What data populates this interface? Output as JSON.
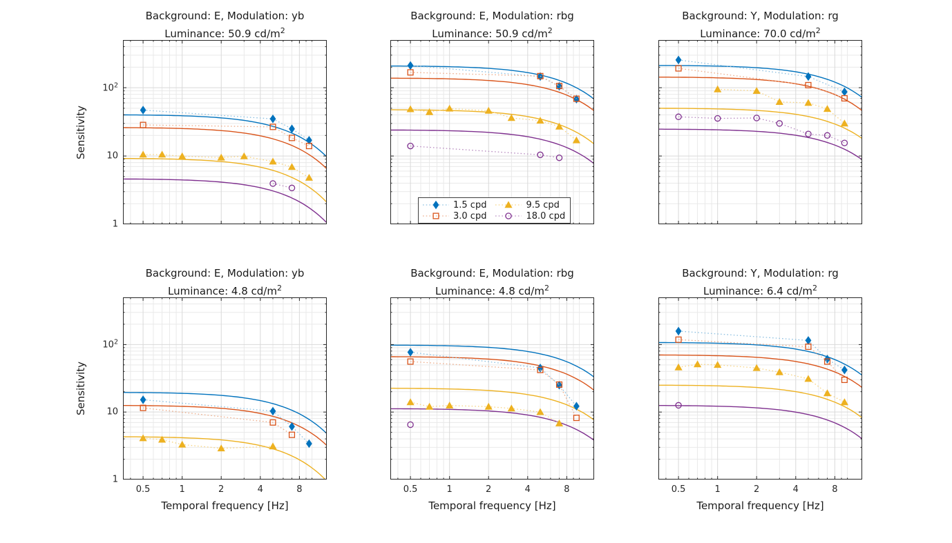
{
  "figure": {
    "background_color": "#ffffff",
    "text_color": "#1a1a1a",
    "axis_color": "#262626",
    "grid_minor_color": "#e9e9e9",
    "grid_major_color": "#d9d9d9"
  },
  "axis": {
    "xlabel": "Temporal frequency [Hz]",
    "ylabel": "Sensitivity",
    "xscale": "log",
    "yscale": "log",
    "xlim": [
      0.35,
      13
    ],
    "ylim": [
      1,
      500
    ],
    "xtick_values": [
      0.5,
      1,
      2,
      4,
      8
    ],
    "xtick_labels": [
      "0.5",
      "1",
      "2",
      "4",
      "8"
    ],
    "ytick_values": [
      1,
      10,
      100
    ],
    "ytick_labels": [
      {
        "text": "1"
      },
      {
        "text": "10"
      },
      {
        "text": "10",
        "sup": "2"
      }
    ],
    "grid_x_minor": [
      0.4,
      0.6,
      0.7,
      0.8,
      0.9,
      3,
      5,
      6,
      7,
      9,
      10
    ],
    "grid_y_minor": [
      2,
      3,
      4,
      5,
      6,
      7,
      8,
      9,
      20,
      30,
      40,
      50,
      60,
      70,
      80,
      90,
      200,
      300,
      400
    ]
  },
  "series_styles": {
    "1.5 cpd": {
      "color": "#0072BD",
      "light": "#8CC0E1",
      "marker": "diamond",
      "filled": true
    },
    "3.0 cpd": {
      "color": "#D95319",
      "light": "#EEAE8C",
      "marker": "square",
      "filled": false
    },
    "9.5 cpd": {
      "color": "#EDB120",
      "light": "#F7D484",
      "marker": "triangle",
      "filled": true
    },
    "18.0 cpd": {
      "color": "#7E2F8E",
      "light": "#B88CC0",
      "marker": "circle",
      "filled": false
    }
  },
  "legend": {
    "entries": [
      {
        "label": "1.5 cpd",
        "marker": "diamond"
      },
      {
        "label": "3.0 cpd",
        "marker": "square"
      },
      {
        "label": "9.5 cpd",
        "marker": "triangle"
      },
      {
        "label": "18.0 cpd",
        "marker": "circle"
      }
    ]
  },
  "chart_data": [
    {
      "type": "line",
      "title_line1": "Background: E, Modulation: yb",
      "title_line2": "Luminance: 50.9 cd/m",
      "title_sup": "2",
      "background": "E",
      "modulation": "yb",
      "luminance_cd_m2": 50.9,
      "series": [
        {
          "name": "1.5 cpd",
          "points": [
            [
              0.5,
              47
            ],
            [
              5,
              35
            ],
            [
              7,
              25
            ],
            [
              9.5,
              17
            ]
          ],
          "model_curve": {
            "y_at_xmin": 40,
            "y_at_xmax": 9.7
          }
        },
        {
          "name": "3.0 cpd",
          "points": [
            [
              0.5,
              28.5
            ],
            [
              5,
              26.7
            ],
            [
              7,
              18.4
            ],
            [
              9.5,
              14
            ]
          ],
          "model_curve": {
            "y_at_xmin": 26,
            "y_at_xmax": 6.5
          }
        },
        {
          "name": "9.5 cpd",
          "points": [
            [
              0.5,
              10.5
            ],
            [
              0.7,
              10.5
            ],
            [
              1,
              9.9
            ],
            [
              2,
              9.5
            ],
            [
              3,
              9.9
            ],
            [
              5,
              8.3
            ],
            [
              7,
              6.9
            ],
            [
              9.5,
              4.8
            ]
          ],
          "model_curve": {
            "y_at_xmin": 9.2,
            "y_at_xmax": 2.1
          }
        },
        {
          "name": "18.0 cpd",
          "points": [
            [
              5,
              3.95
            ],
            [
              7,
              3.4
            ]
          ],
          "model_curve": {
            "y_at_xmin": 4.6,
            "y_at_xmax": 1.05
          }
        }
      ]
    },
    {
      "type": "line",
      "title_line1": "Background: E, Modulation: rbg",
      "title_line2": "Luminance: 50.9 cd/m",
      "title_sup": "2",
      "background": "E",
      "modulation": "rbg",
      "luminance_cd_m2": 50.9,
      "series": [
        {
          "name": "1.5 cpd",
          "points": [
            [
              0.5,
              212
            ],
            [
              5,
              146
            ],
            [
              7,
              105
            ],
            [
              9.5,
              68
            ]
          ],
          "model_curve": {
            "y_at_xmin": 208,
            "y_at_xmax": 68
          }
        },
        {
          "name": "3.0 cpd",
          "points": [
            [
              0.5,
              168
            ],
            [
              5,
              148
            ],
            [
              7,
              106
            ],
            [
              9.5,
              69
            ]
          ],
          "model_curve": {
            "y_at_xmin": 138,
            "y_at_xmax": 46
          }
        },
        {
          "name": "9.5 cpd",
          "points": [
            [
              0.5,
              48.5
            ],
            [
              0.7,
              44
            ],
            [
              1,
              49.6
            ],
            [
              2,
              46
            ],
            [
              3,
              36
            ],
            [
              5,
              33
            ],
            [
              7,
              27
            ],
            [
              9.5,
              17
            ]
          ],
          "model_curve": {
            "y_at_xmin": 47.5,
            "y_at_xmax": 15
          }
        },
        {
          "name": "18.0 cpd",
          "points": [
            [
              0.5,
              14
            ],
            [
              5,
              10.4
            ],
            [
              7,
              9.4
            ]
          ],
          "model_curve": {
            "y_at_xmin": 24,
            "y_at_xmax": 7.7
          }
        }
      ]
    },
    {
      "type": "line",
      "title_line1": "Background: Y, Modulation: rg",
      "title_line2": "Luminance: 70.0 cd/m",
      "title_sup": "2",
      "background": "Y",
      "modulation": "rg",
      "luminance_cd_m2": 70.0,
      "series": [
        {
          "name": "1.5 cpd",
          "points": [
            [
              0.5,
              255
            ],
            [
              5,
              146
            ],
            [
              9.5,
              87
            ]
          ],
          "model_curve": {
            "y_at_xmin": 212,
            "y_at_xmax": 72
          }
        },
        {
          "name": "3.0 cpd",
          "points": [
            [
              0.5,
              192
            ],
            [
              5,
              109
            ],
            [
              9.5,
              70
            ]
          ],
          "model_curve": {
            "y_at_xmin": 143,
            "y_at_xmax": 46
          }
        },
        {
          "name": "9.5 cpd",
          "points": [
            [
              1,
              95
            ],
            [
              2,
              90
            ],
            [
              3,
              62
            ],
            [
              5,
              60
            ],
            [
              7,
              49
            ],
            [
              9.5,
              30
            ]
          ],
          "model_curve": {
            "y_at_xmin": 50,
            "y_at_xmax": 18
          }
        },
        {
          "name": "18.0 cpd",
          "points": [
            [
              0.5,
              37.5
            ],
            [
              1,
              35.5
            ],
            [
              2,
              36
            ],
            [
              3,
              30
            ],
            [
              5,
              21
            ],
            [
              7,
              20
            ],
            [
              9.5,
              15.5
            ]
          ],
          "model_curve": {
            "y_at_xmin": 24.7,
            "y_at_xmax": 8.8
          }
        }
      ]
    },
    {
      "type": "line",
      "title_line1": "Background: E, Modulation: yb",
      "title_line2": "Luminance: 4.8 cd/m",
      "title_sup": "2",
      "background": "E",
      "modulation": "yb",
      "luminance_cd_m2": 4.8,
      "series": [
        {
          "name": "1.5 cpd",
          "points": [
            [
              0.5,
              15.2
            ],
            [
              5,
              10.3
            ],
            [
              7,
              6.1
            ],
            [
              9.5,
              3.4
            ]
          ],
          "model_curve": {
            "y_at_xmin": 19.5,
            "y_at_xmax": 4.8
          }
        },
        {
          "name": "3.0 cpd",
          "points": [
            [
              0.5,
              11.5
            ],
            [
              5,
              7.0
            ],
            [
              7,
              4.6
            ]
          ],
          "model_curve": {
            "y_at_xmin": 12.5,
            "y_at_xmax": 3.2
          }
        },
        {
          "name": "9.5 cpd",
          "points": [
            [
              0.5,
              4.1
            ],
            [
              0.7,
              3.9
            ],
            [
              1,
              3.3
            ],
            [
              2,
              2.9
            ],
            [
              5,
              3.1
            ]
          ],
          "model_curve": {
            "y_at_xmin": 4.3,
            "y_at_xmax": 0.95
          }
        }
      ]
    },
    {
      "type": "line",
      "title_line1": "Background: E, Modulation: rbg",
      "title_line2": "Luminance: 4.8 cd/m",
      "title_sup": "2",
      "background": "E",
      "modulation": "rbg",
      "luminance_cd_m2": 4.8,
      "series": [
        {
          "name": "1.5 cpd",
          "points": [
            [
              0.5,
              77
            ],
            [
              5,
              45
            ],
            [
              7,
              25
            ],
            [
              9.5,
              12.2
            ]
          ],
          "model_curve": {
            "y_at_xmin": 98,
            "y_at_xmax": 33
          }
        },
        {
          "name": "3.0 cpd",
          "points": [
            [
              0.5,
              56
            ],
            [
              5,
              42
            ],
            [
              7,
              25.5
            ],
            [
              9.5,
              8.2
            ]
          ],
          "model_curve": {
            "y_at_xmin": 66,
            "y_at_xmax": 21
          }
        },
        {
          "name": "9.5 cpd",
          "points": [
            [
              0.5,
              14
            ],
            [
              0.7,
              12
            ],
            [
              1,
              12.5
            ],
            [
              2,
              12
            ],
            [
              3,
              11.3
            ],
            [
              5,
              10
            ],
            [
              7,
              6.8
            ]
          ],
          "model_curve": {
            "y_at_xmin": 22.5,
            "y_at_xmax": 7.6
          }
        },
        {
          "name": "18.0 cpd",
          "points": [
            [
              0.5,
              6.5
            ]
          ],
          "model_curve": {
            "y_at_xmin": 11.2,
            "y_at_xmax": 3.8
          }
        }
      ]
    },
    {
      "type": "line",
      "title_line1": "Background: Y, Modulation: rg",
      "title_line2": "Luminance: 6.4 cd/m",
      "title_sup": "2",
      "background": "Y",
      "modulation": "rg",
      "luminance_cd_m2": 6.4,
      "series": [
        {
          "name": "1.5 cpd",
          "points": [
            [
              0.5,
              158
            ],
            [
              5,
              115
            ],
            [
              7,
              61
            ],
            [
              9.5,
              42
            ]
          ],
          "model_curve": {
            "y_at_xmin": 107,
            "y_at_xmax": 35
          }
        },
        {
          "name": "3.0 cpd",
          "points": [
            [
              0.5,
              118
            ],
            [
              5,
              93
            ],
            [
              7,
              56
            ],
            [
              9.5,
              30
            ]
          ],
          "model_curve": {
            "y_at_xmin": 70,
            "y_at_xmax": 23
          }
        },
        {
          "name": "9.5 cpd",
          "points": [
            [
              0.5,
              46
            ],
            [
              0.7,
              51
            ],
            [
              1,
              50
            ],
            [
              2,
              45
            ],
            [
              3,
              39
            ],
            [
              5,
              31
            ],
            [
              7,
              19
            ],
            [
              9.5,
              14
            ]
          ],
          "model_curve": {
            "y_at_xmin": 25,
            "y_at_xmax": 8.2
          }
        },
        {
          "name": "18.0 cpd",
          "points": [
            [
              0.5,
              12.6
            ]
          ],
          "model_curve": {
            "y_at_xmin": 12.5,
            "y_at_xmax": 4.0
          }
        }
      ]
    }
  ]
}
